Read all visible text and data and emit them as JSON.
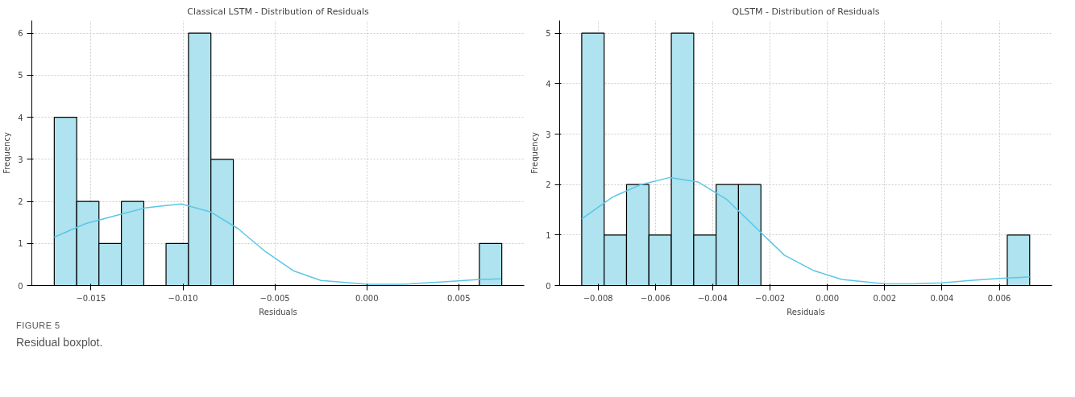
{
  "chart_data": [
    {
      "type": "histogram",
      "title": "Classical LSTM - Distribution of Residuals",
      "xlabel": "Residuals",
      "ylabel": "Frequency",
      "bins": [
        -0.017,
        -0.01578,
        -0.01457,
        -0.01335,
        -0.01213,
        -0.01092,
        -0.0097,
        -0.00848,
        -0.00726,
        -0.00605,
        -0.00483,
        -0.00361,
        -0.0024,
        -0.00118,
        4e-05,
        0.00125,
        0.00247,
        0.00369,
        0.0049,
        0.00612,
        0.00734
      ],
      "values": [
        4,
        2,
        1,
        2,
        0,
        1,
        6,
        3,
        0,
        0,
        0,
        0,
        0,
        0,
        0,
        0,
        0,
        0,
        0,
        1
      ],
      "color": "#aee3ef",
      "series": [
        {
          "type": "line",
          "color": "#5bc6e6",
          "x": [
            -0.017,
            -0.0153,
            -0.0135,
            -0.012,
            -0.0101,
            -0.0085,
            -0.007,
            -0.0055,
            -0.004,
            -0.0025,
            0.0,
            0.002,
            0.004,
            0.006,
            0.0073
          ],
          "values": [
            1.15,
            1.47,
            1.68,
            1.85,
            1.94,
            1.75,
            1.35,
            0.8,
            0.35,
            0.12,
            0.03,
            0.03,
            0.08,
            0.14,
            0.16
          ]
        }
      ],
      "xlim": [
        -0.01822,
        0.00856
      ],
      "ylim": [
        0,
        6.3
      ],
      "xticks": [
        {
          "value": -0.015,
          "label": "−0.015"
        },
        {
          "value": -0.01,
          "label": "−0.010"
        },
        {
          "value": -0.005,
          "label": "−0.005"
        },
        {
          "value": 0,
          "label": "0.000"
        },
        {
          "value": 0.005,
          "label": "0.005"
        }
      ],
      "yticks": [
        0,
        1,
        2,
        3,
        4,
        5,
        6
      ],
      "grid": true,
      "annotations": [
        "FIGURE 5",
        "Residual boxplot."
      ]
    },
    {
      "type": "histogram",
      "title": "QLSTM - Distribution of Residuals",
      "xlabel": "Residuals",
      "ylabel": "Frequency",
      "bins": [
        -0.00857,
        -0.007788,
        -0.007007,
        -0.006226,
        -0.005444,
        -0.004662,
        -0.003881,
        -0.0031,
        -0.002318,
        -0.001536,
        -0.000755,
        2.6e-05,
        0.000808,
        0.00159,
        0.002371,
        0.003152,
        0.003934,
        0.004716,
        0.005497,
        0.006278,
        0.00706
      ],
      "values": [
        5,
        1,
        2,
        1,
        5,
        1,
        2,
        2,
        0,
        0,
        0,
        0,
        0,
        0,
        0,
        0,
        0,
        0,
        0,
        1
      ],
      "color": "#aee3ef",
      "series": [
        {
          "type": "line",
          "color": "#5bc6e6",
          "x": [
            -0.00857,
            -0.0075,
            -0.0065,
            -0.0055,
            -0.0045,
            -0.0035,
            -0.0025,
            -0.0015,
            -0.0005,
            0.0005,
            0.002,
            0.003,
            0.004,
            0.005,
            0.006,
            0.00706
          ],
          "values": [
            1.32,
            1.75,
            2.0,
            2.14,
            2.05,
            1.7,
            1.15,
            0.6,
            0.3,
            0.12,
            0.03,
            0.03,
            0.05,
            0.1,
            0.14,
            0.17
          ]
        }
      ],
      "xlim": [
        -0.00934,
        0.00784
      ],
      "ylim": [
        0,
        5.25
      ],
      "xticks": [
        {
          "value": -0.008,
          "label": "−0.008"
        },
        {
          "value": -0.006,
          "label": "−0.006"
        },
        {
          "value": -0.004,
          "label": "−0.004"
        },
        {
          "value": -0.002,
          "label": "−0.002"
        },
        {
          "value": 0,
          "label": "0.000"
        },
        {
          "value": 0.002,
          "label": "0.002"
        },
        {
          "value": 0.004,
          "label": "0.004"
        },
        {
          "value": 0.006,
          "label": "0.006"
        }
      ],
      "yticks": [
        0,
        1,
        2,
        3,
        4,
        5
      ],
      "grid": true
    }
  ]
}
